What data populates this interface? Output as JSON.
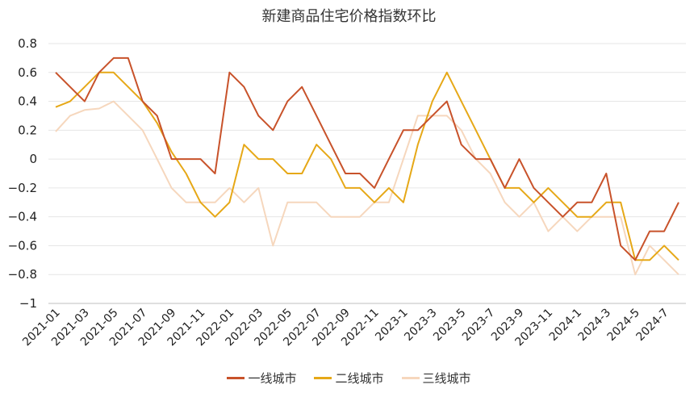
{
  "chart_data": {
    "type": "line",
    "title": "新建商品住宅价格指数环比",
    "xlabel": "",
    "ylabel": "",
    "ylim": [
      -1,
      0.8
    ],
    "y_ticks": [
      "0.8",
      "0.6",
      "0.4",
      "0.2",
      "0",
      "−0.2",
      "−0.4",
      "−0.6",
      "−0.8",
      "−1"
    ],
    "y_tick_values": [
      0.8,
      0.6,
      0.4,
      0.2,
      0,
      -0.2,
      -0.4,
      -0.6,
      -0.8,
      -1
    ],
    "x": [
      "2021-01",
      "2021-02",
      "2021-03",
      "2021-04",
      "2021-05",
      "2021-06",
      "2021-07",
      "2021-08",
      "2021-09",
      "2021-10",
      "2021-11",
      "2021-12",
      "2022-01",
      "2022-02",
      "2022-03",
      "2022-04",
      "2022-05",
      "2022-06",
      "2022-07",
      "2022-08",
      "2022-09",
      "2022-10",
      "2022-11",
      "2022-12",
      "2023-1",
      "2023-2",
      "2023-3",
      "2023-4",
      "2023-5",
      "2023-6",
      "2023-7",
      "2023-8",
      "2023-9",
      "2023-10",
      "2023-11",
      "2023-12",
      "2024-1",
      "2024-2",
      "2024-3",
      "2024-4",
      "2024-5",
      "2024-6",
      "2024-7",
      "2024-8"
    ],
    "x_tick_labels": [
      "2021-01",
      "2021-03",
      "2021-05",
      "2021-07",
      "2021-09",
      "2021-11",
      "2022-01",
      "2022-03",
      "2022-05",
      "2022-07",
      "2022-09",
      "2022-11",
      "2023-1",
      "2023-3",
      "2023-5",
      "2023-7",
      "2023-9",
      "2023-11",
      "2024-1",
      "2024-3",
      "2024-5",
      "2024-7"
    ],
    "x_tick_indices": [
      0,
      2,
      4,
      6,
      8,
      10,
      12,
      14,
      16,
      18,
      20,
      22,
      24,
      26,
      28,
      30,
      32,
      34,
      36,
      38,
      40,
      42
    ],
    "series": [
      {
        "name": "一线城市",
        "color": "#c8522a",
        "values": [
          0.6,
          0.5,
          0.4,
          0.6,
          0.7,
          0.7,
          0.4,
          0.3,
          0.0,
          0.0,
          0.0,
          -0.1,
          0.6,
          0.5,
          0.3,
          0.2,
          0.4,
          0.5,
          0.3,
          0.1,
          -0.1,
          -0.1,
          -0.2,
          0.0,
          0.2,
          0.2,
          0.3,
          0.4,
          0.1,
          0.0,
          0.0,
          -0.2,
          0.0,
          -0.2,
          -0.3,
          -0.4,
          -0.3,
          -0.3,
          -0.1,
          -0.6,
          -0.7,
          -0.5,
          -0.5,
          -0.3
        ]
      },
      {
        "name": "二线城市",
        "color": "#e6a817",
        "values": [
          0.36,
          0.4,
          0.5,
          0.6,
          0.6,
          0.5,
          0.4,
          0.25,
          0.05,
          -0.1,
          -0.3,
          -0.4,
          -0.3,
          0.1,
          0.0,
          0.0,
          -0.1,
          -0.1,
          0.1,
          0.0,
          -0.2,
          -0.2,
          -0.3,
          -0.2,
          -0.3,
          0.1,
          0.4,
          0.6,
          0.4,
          0.2,
          0.0,
          -0.2,
          -0.2,
          -0.3,
          -0.2,
          -0.3,
          -0.4,
          -0.4,
          -0.3,
          -0.3,
          -0.7,
          -0.7,
          -0.6,
          -0.7
        ]
      },
      {
        "name": "三线城市",
        "color": "#f6d7bd",
        "values": [
          0.19,
          0.3,
          0.34,
          0.35,
          0.4,
          0.3,
          0.2,
          0.0,
          -0.2,
          -0.3,
          -0.3,
          -0.3,
          -0.2,
          -0.3,
          -0.2,
          -0.6,
          -0.3,
          -0.3,
          -0.3,
          -0.4,
          -0.4,
          -0.4,
          -0.3,
          -0.3,
          0.0,
          0.3,
          0.3,
          0.3,
          0.2,
          0.0,
          -0.1,
          -0.3,
          -0.4,
          -0.3,
          -0.5,
          -0.4,
          -0.5,
          -0.4,
          -0.4,
          -0.4,
          -0.8,
          -0.6,
          -0.7,
          -0.8
        ]
      }
    ],
    "legend": "bottom",
    "grid": true
  }
}
